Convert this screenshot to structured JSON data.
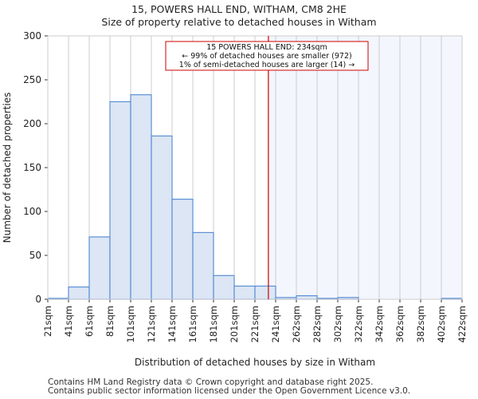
{
  "chart_data": {
    "type": "bar",
    "title": "15, POWERS HALL END, WITHAM, CM8 2HE",
    "subtitle": "Size of property relative to detached houses in Witham",
    "xlabel": "Distribution of detached houses by size in Witham",
    "ylabel": "Number of detached properties",
    "ylim": [
      0,
      300
    ],
    "yticks": [
      0,
      50,
      100,
      150,
      200,
      250,
      300
    ],
    "tick_labels": [
      "21sqm",
      "41sqm",
      "61sqm",
      "81sqm",
      "101sqm",
      "121sqm",
      "141sqm",
      "161sqm",
      "181sqm",
      "201sqm",
      "221sqm",
      "241sqm",
      "262sqm",
      "282sqm",
      "302sqm",
      "322sqm",
      "342sqm",
      "362sqm",
      "382sqm",
      "402sqm",
      "422sqm"
    ],
    "values": [
      1,
      14,
      71,
      225,
      233,
      186,
      114,
      76,
      27,
      15,
      15,
      2,
      4,
      1,
      2,
      0,
      0,
      0,
      0,
      1
    ],
    "marker": {
      "value": 234,
      "bin_position": 10.65
    },
    "annotation": [
      "15 POWERS HALL END: 234sqm",
      "← 99% of detached houses are smaller (972)",
      "1% of semi-detached houses are larger (14) →"
    ],
    "colors": {
      "bar_fill": "#dce6f4",
      "bar_edge": "#5b8fd6",
      "marker": "#cc0000",
      "shade": "#f3f6fd",
      "grid": "#cccccc"
    }
  },
  "footer": [
    "Contains HM Land Registry data © Crown copyright and database right 2025.",
    "Contains public sector information licensed under the Open Government Licence v3.0."
  ]
}
